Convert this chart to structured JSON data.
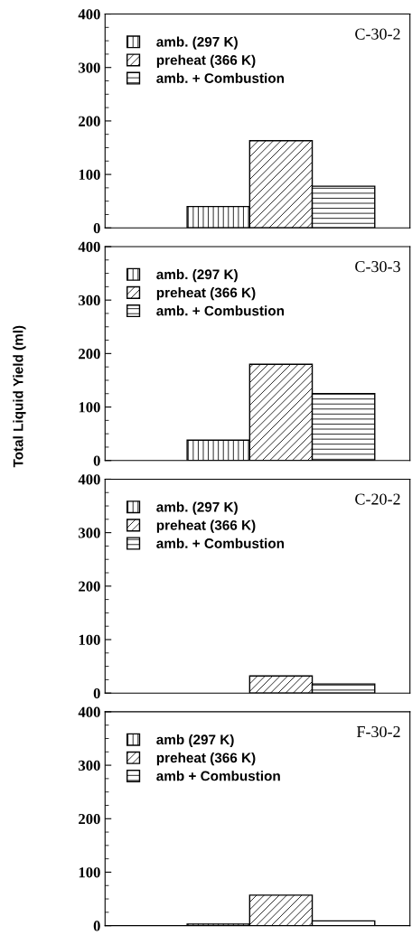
{
  "chart_data": [
    {
      "type": "bar",
      "title": "C-30-2",
      "categories": [
        null
      ],
      "ylim": [
        0,
        400
      ],
      "yticks": [
        0,
        100,
        200,
        300,
        400
      ],
      "tick_labels": "y",
      "legend": "top left",
      "grid": false,
      "series": [
        {
          "name": "amb. (297 K)",
          "color": "#000000",
          "values": [
            40
          ]
        },
        {
          "name": "preheat (366 K)",
          "color": "#000000",
          "values": [
            163
          ]
        },
        {
          "name": "amb. + Combustion",
          "color": "#000000",
          "values": [
            78
          ]
        }
      ]
    },
    {
      "type": "bar",
      "title": "C-30-3",
      "ylabel": "Total Liquid Yield (ml)",
      "categories": [
        null
      ],
      "ylim": [
        0,
        400
      ],
      "yticks": [
        0,
        100,
        200,
        300,
        400
      ],
      "tick_labels": "y",
      "legend": "top left",
      "grid": false,
      "series": [
        {
          "name": "amb. (297 K)",
          "color": "#000000",
          "values": [
            38
          ]
        },
        {
          "name": "preheat (366 K)",
          "color": "#000000",
          "values": [
            180
          ]
        },
        {
          "name": "amb. + Combustion",
          "color": "#000000",
          "values": [
            125
          ]
        }
      ]
    },
    {
      "type": "bar",
      "title": "C-20-2",
      "categories": [
        null
      ],
      "ylim": [
        0,
        400
      ],
      "yticks": [
        0,
        100,
        200,
        300,
        400
      ],
      "tick_labels": "y",
      "legend": "top left",
      "grid": false,
      "series": [
        {
          "name": "amb. (297 K)",
          "color": "#000000",
          "values": [
            null
          ]
        },
        {
          "name": "preheat (366 K)",
          "color": "#000000",
          "values": [
            32
          ]
        },
        {
          "name": "amb. + Combustion",
          "color": "#000000",
          "values": [
            17
          ]
        }
      ]
    },
    {
      "type": "bar",
      "title": "F-30-2",
      "categories": [
        null
      ],
      "ylim": [
        0,
        400
      ],
      "yticks": [
        0,
        100,
        200,
        300,
        400
      ],
      "tick_labels": "y",
      "legend": "top left",
      "grid": false,
      "series": [
        {
          "name": "amb (297 K)",
          "color": "#000000",
          "values": [
            3
          ]
        },
        {
          "name": "preheat (366 K)",
          "color": "#000000",
          "values": [
            57
          ]
        },
        {
          "name": "amb + Combustion",
          "color": "#000000",
          "values": [
            9
          ]
        }
      ]
    }
  ]
}
